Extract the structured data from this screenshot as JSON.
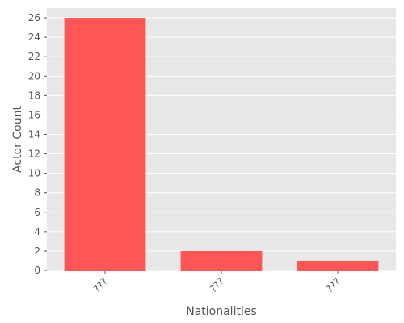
{
  "chart_data": {
    "type": "bar",
    "title": "",
    "xlabel": "Nationalities",
    "ylabel": "Actor Count",
    "categories": [
      "???",
      "???",
      "???"
    ],
    "values": [
      26,
      2,
      1
    ],
    "ylim": [
      0,
      27
    ],
    "yticks": [
      0,
      2,
      4,
      6,
      8,
      10,
      12,
      14,
      16,
      18,
      20,
      22,
      24,
      26
    ],
    "grid": true,
    "bar_color": "#ff5555",
    "background_color": "#e8e8e8",
    "grid_color": "#ffffff"
  }
}
